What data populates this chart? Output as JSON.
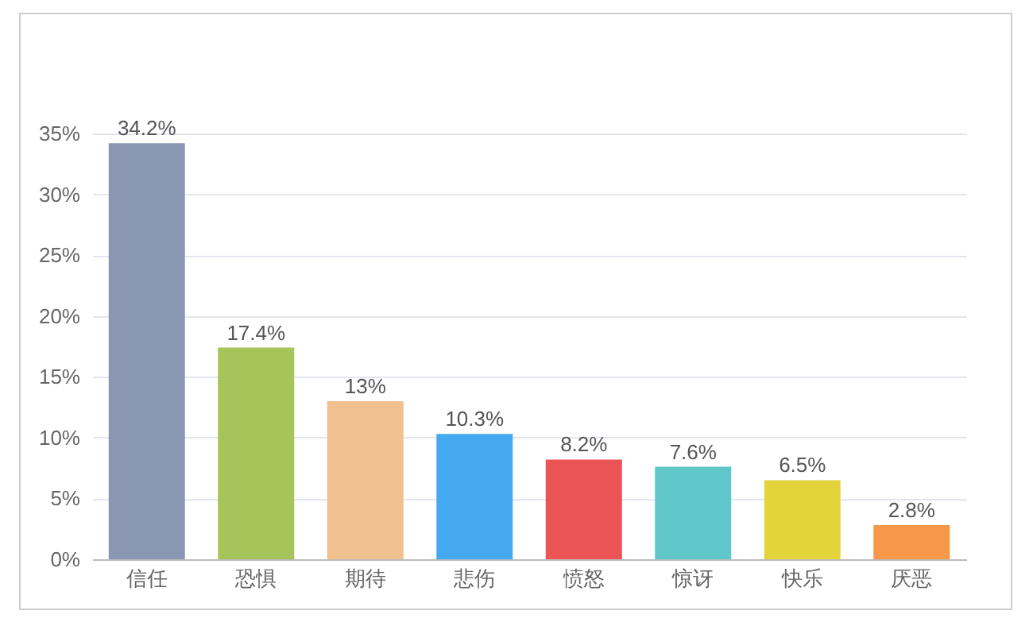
{
  "chart_data": {
    "type": "bar",
    "categories": [
      "信任",
      "恐惧",
      "期待",
      "悲伤",
      "愤怒",
      "惊讶",
      "快乐",
      "厌恶"
    ],
    "values": [
      34.2,
      17.4,
      13,
      10.3,
      8.2,
      7.6,
      6.5,
      2.8
    ],
    "value_labels": [
      "34.2%",
      "17.4%",
      "13%",
      "10.3%",
      "8.2%",
      "7.6%",
      "6.5%",
      "2.8%"
    ],
    "colors": [
      "#8a97b3",
      "#a5c45a",
      "#f0c08f",
      "#45a9ef",
      "#ea5455",
      "#5fc6c9",
      "#e3d43c",
      "#f79848"
    ],
    "ylim": [
      0,
      35
    ],
    "yticks": [
      {
        "value": 0,
        "label": "0%"
      },
      {
        "value": 5,
        "label": "5%"
      },
      {
        "value": 10,
        "label": "10%"
      },
      {
        "value": 15,
        "label": "15%"
      },
      {
        "value": 20,
        "label": "20%"
      },
      {
        "value": 25,
        "label": "25%"
      },
      {
        "value": 30,
        "label": "30%"
      },
      {
        "value": 35,
        "label": "35%"
      }
    ],
    "grid": "y"
  }
}
